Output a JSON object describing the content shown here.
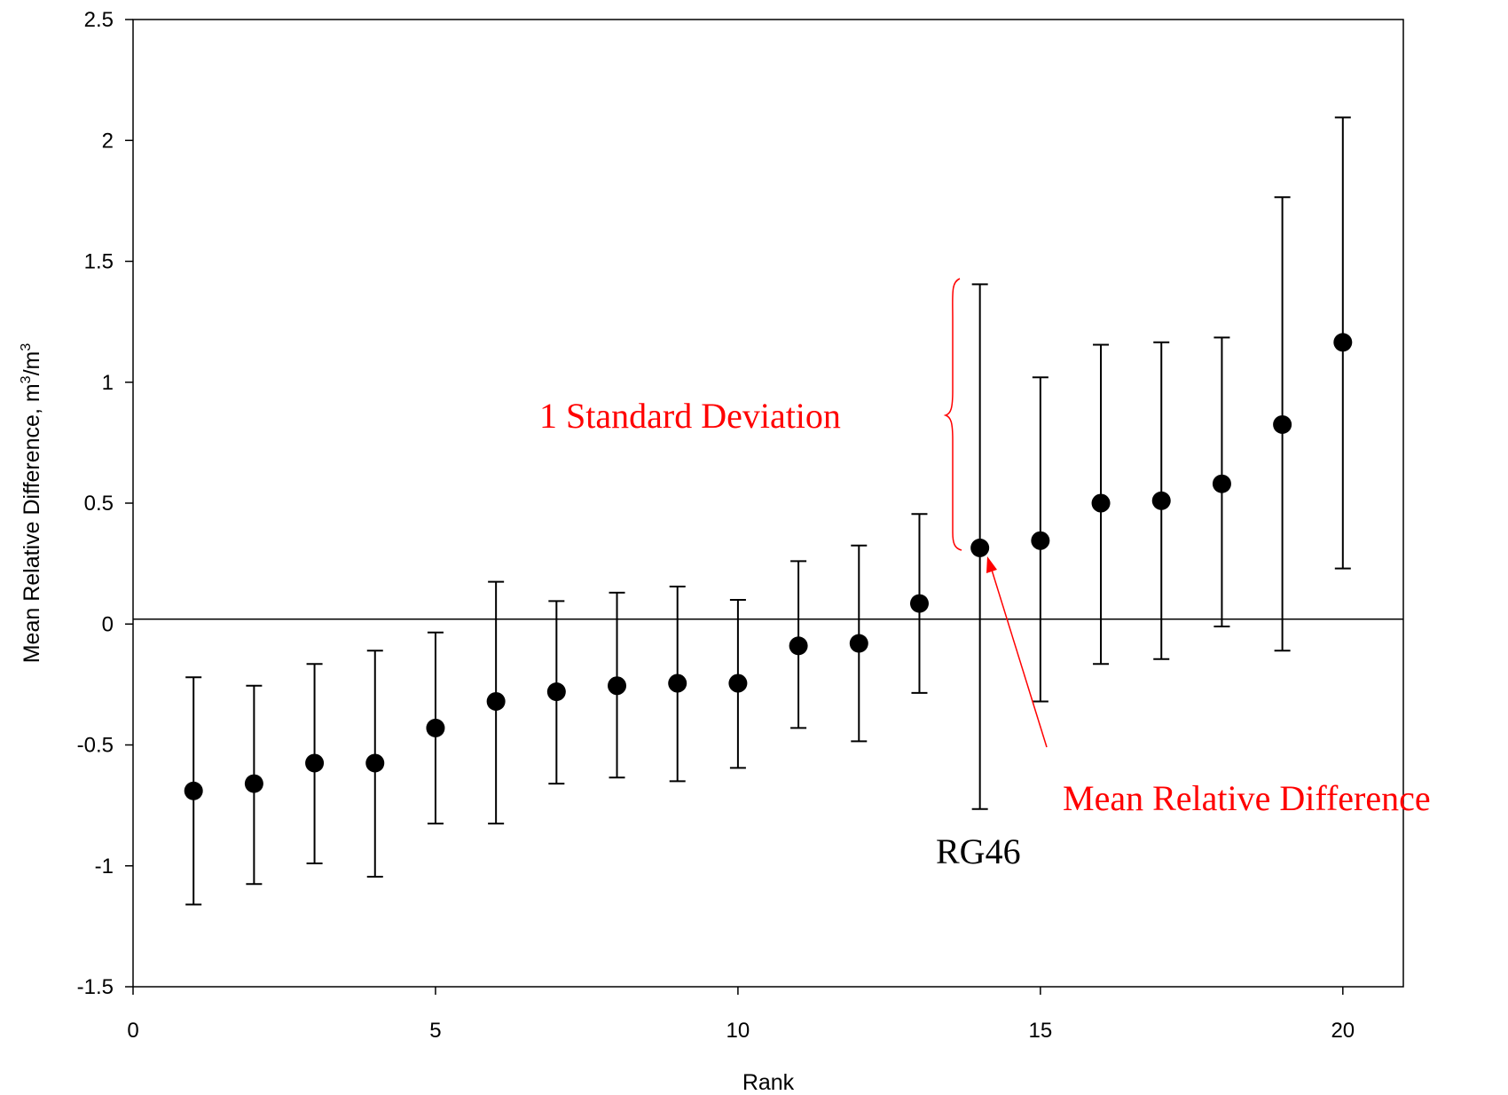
{
  "chart_data": {
    "type": "scatter",
    "title": "",
    "xlabel": "Rank",
    "ylabel": "Mean Relative Difference, m3/m3",
    "ylabel_parts": {
      "text": "Mean Relative Difference, m",
      "sup1": "3",
      "mid": "/m",
      "sup2": "3"
    },
    "xlim": [
      0,
      21
    ],
    "ylim": [
      -1.5,
      2.5
    ],
    "x_ticks": [
      0,
      5,
      10,
      15,
      20
    ],
    "x_tick_labels": [
      "0",
      "5",
      "10",
      "15",
      "20"
    ],
    "y_ticks": [
      -1.5,
      -1,
      -0.5,
      0,
      0.5,
      1,
      1.5,
      2,
      2.5
    ],
    "y_tick_labels": [
      "-1.5",
      "-1",
      "-0.5",
      "0",
      "0.5",
      "1",
      "1.5",
      "2",
      "2.5"
    ],
    "grid": false,
    "reference_line_y": 0.02,
    "series": [
      {
        "x": [
          1,
          2,
          3,
          4,
          5,
          6,
          7,
          8,
          9,
          10,
          11,
          12,
          13,
          14,
          15,
          16,
          17,
          18,
          19,
          20
        ],
        "y": [
          -0.69,
          -0.66,
          -0.575,
          -0.575,
          -0.43,
          -0.32,
          -0.28,
          -0.255,
          -0.245,
          -0.245,
          -0.09,
          -0.08,
          0.085,
          0.315,
          0.345,
          0.5,
          0.51,
          0.58,
          0.825,
          1.165
        ],
        "upper": [
          -0.22,
          -0.255,
          -0.165,
          -0.11,
          -0.035,
          0.175,
          0.095,
          0.13,
          0.155,
          0.1,
          0.26,
          0.325,
          0.455,
          1.405,
          1.02,
          1.155,
          1.165,
          1.185,
          1.765,
          2.095
        ],
        "lower": [
          -1.16,
          -1.075,
          -0.99,
          -1.045,
          -0.825,
          -0.825,
          -0.66,
          -0.635,
          -0.65,
          -0.595,
          -0.43,
          -0.485,
          -0.285,
          -0.765,
          -0.32,
          -0.165,
          -0.145,
          -0.01,
          -0.11,
          0.23
        ]
      }
    ],
    "annotations": {
      "std_label": "1 Standard Deviation",
      "mrd_label": "Mean Relative Difference",
      "point_label": "RG46",
      "point_label_rank": 14
    },
    "colors": {
      "annotation": "#ff0000",
      "markers": "#000000"
    }
  }
}
